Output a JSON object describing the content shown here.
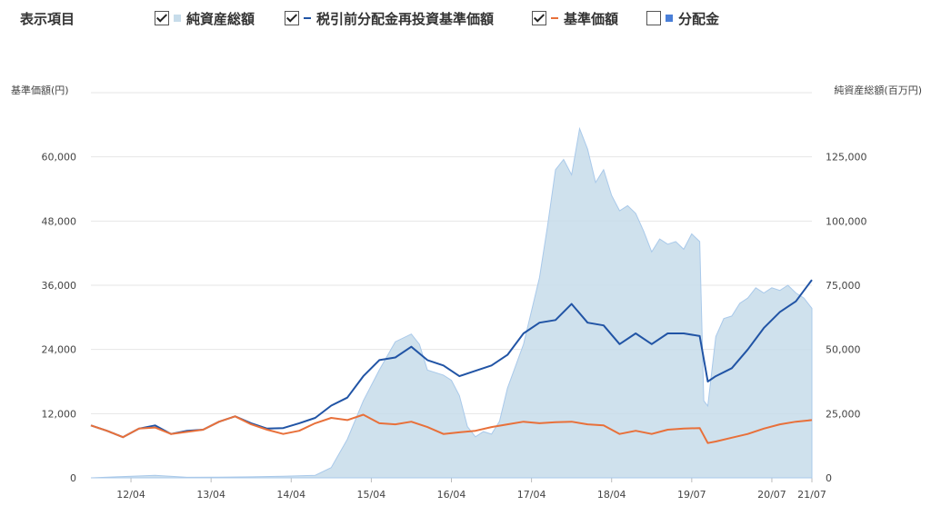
{
  "legend": {
    "title": "表示項目",
    "items": [
      {
        "label": "純資産総額",
        "checked": true,
        "marker": "square",
        "color": "#c7dcea"
      },
      {
        "label": "税引前分配金再投資基準価額",
        "checked": true,
        "marker": "dash",
        "color": "#2154a5"
      },
      {
        "label": "基準価額",
        "checked": true,
        "marker": "dash",
        "color": "#e8703a"
      },
      {
        "label": "分配金",
        "checked": false,
        "marker": "square",
        "color": "#4a7fd8"
      }
    ]
  },
  "chart_data": {
    "type": "line",
    "y_left_label": "基準価額(円)",
    "y_right_label": "純資産総額(百万円)",
    "y_left_ticks": [
      "0",
      "12,000",
      "24,000",
      "36,000",
      "48,000",
      "60,000"
    ],
    "y_right_ticks": [
      "0",
      "25,000",
      "50,000",
      "75,000",
      "100,000",
      "125,000"
    ],
    "ylim_left": [
      0,
      72000
    ],
    "ylim_right": [
      0,
      150000
    ],
    "x_ticks": [
      "12/04",
      "13/04",
      "14/04",
      "15/04",
      "16/04",
      "17/04",
      "18/04",
      "19/07",
      "20/07",
      "21/07"
    ],
    "grid": true,
    "series": [
      {
        "name": "純資産総額",
        "axis": "right",
        "style": "area",
        "color": "#c7dcea",
        "x": [
          0,
          0.4,
          0.8,
          1.2,
          1.6,
          2.0,
          2.4,
          2.8,
          3.0,
          3.2,
          3.4,
          3.6,
          3.8,
          4.0,
          4.1,
          4.2,
          4.4,
          4.5,
          4.6,
          4.7,
          4.8,
          4.9,
          5.0,
          5.1,
          5.2,
          5.4,
          5.6,
          5.7,
          5.8,
          5.9,
          6.0,
          6.1,
          6.2,
          6.3,
          6.4,
          6.5,
          6.6,
          6.7,
          6.8,
          6.9,
          7.0,
          7.1,
          7.2,
          7.3,
          7.4,
          7.5,
          7.6,
          7.65,
          7.7,
          7.8,
          7.9,
          8.0,
          8.1,
          8.2,
          8.3,
          8.4,
          8.5,
          8.6,
          8.7,
          8.8,
          8.9,
          9.0
        ],
        "y": [
          0,
          500,
          1000,
          200,
          300,
          400,
          600,
          1000,
          4000,
          15000,
          30000,
          42000,
          53000,
          56000,
          52000,
          42000,
          40000,
          38000,
          32000,
          20000,
          16000,
          18000,
          17000,
          22000,
          35000,
          52000,
          78000,
          98000,
          120000,
          124000,
          118000,
          136000,
          128000,
          115000,
          120000,
          110000,
          104000,
          106000,
          103000,
          96000,
          88000,
          93000,
          91000,
          92000,
          89000,
          95000,
          92000,
          30000,
          28000,
          55000,
          62000,
          63000,
          68000,
          70000,
          74000,
          72000,
          74000,
          73000,
          75000,
          72000,
          70000,
          66000
        ]
      },
      {
        "name": "税引前分配金再投資基準価額",
        "axis": "left",
        "style": "line",
        "color": "#2154a5",
        "x": [
          0,
          0.2,
          0.4,
          0.6,
          0.8,
          1.0,
          1.2,
          1.4,
          1.6,
          1.8,
          2.0,
          2.2,
          2.4,
          2.6,
          2.8,
          3.0,
          3.2,
          3.4,
          3.6,
          3.8,
          4.0,
          4.2,
          4.4,
          4.6,
          4.8,
          5.0,
          5.2,
          5.4,
          5.6,
          5.8,
          6.0,
          6.2,
          6.4,
          6.6,
          6.8,
          7.0,
          7.2,
          7.4,
          7.6,
          7.7,
          7.8,
          8.0,
          8.2,
          8.4,
          8.6,
          8.8,
          9.0
        ],
        "y": [
          9800,
          8800,
          7600,
          9200,
          9800,
          8200,
          8800,
          9000,
          10500,
          11500,
          10200,
          9200,
          9300,
          10200,
          11200,
          13500,
          15000,
          19000,
          22000,
          22500,
          24500,
          22000,
          21000,
          19000,
          20000,
          21000,
          23000,
          27000,
          29000,
          29500,
          32500,
          29000,
          28500,
          25000,
          27000,
          25000,
          27000,
          27000,
          26500,
          18000,
          19000,
          20500,
          24000,
          28000,
          31000,
          33000,
          37000
        ]
      },
      {
        "name": "基準価額",
        "axis": "left",
        "style": "line",
        "color": "#e8703a",
        "x": [
          0,
          0.2,
          0.4,
          0.6,
          0.8,
          1.0,
          1.2,
          1.4,
          1.6,
          1.8,
          2.0,
          2.2,
          2.4,
          2.6,
          2.8,
          3.0,
          3.2,
          3.4,
          3.6,
          3.8,
          4.0,
          4.2,
          4.4,
          4.6,
          4.8,
          5.0,
          5.2,
          5.4,
          5.6,
          5.8,
          6.0,
          6.2,
          6.4,
          6.6,
          6.8,
          7.0,
          7.2,
          7.4,
          7.6,
          7.7,
          7.8,
          8.0,
          8.2,
          8.4,
          8.6,
          8.8,
          9.0
        ],
        "y": [
          9800,
          8800,
          7600,
          9200,
          9400,
          8200,
          8600,
          9000,
          10500,
          11500,
          10000,
          9000,
          8200,
          8800,
          10200,
          11200,
          10800,
          11800,
          10200,
          10000,
          10500,
          9500,
          8200,
          8500,
          8800,
          9500,
          10000,
          10500,
          10200,
          10400,
          10500,
          10000,
          9800,
          8200,
          8800,
          8200,
          9000,
          9200,
          9300,
          6500,
          6800,
          7500,
          8200,
          9200,
          10000,
          10500,
          10800
        ]
      }
    ]
  }
}
